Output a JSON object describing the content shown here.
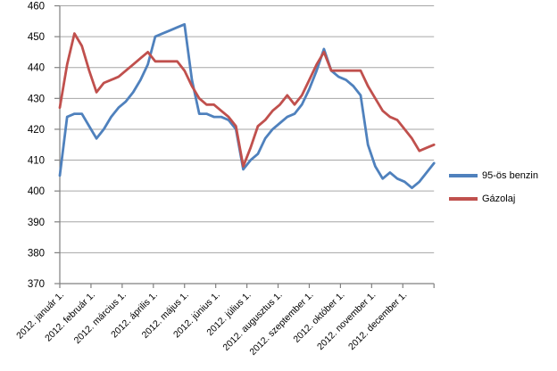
{
  "chart_data": {
    "type": "line",
    "title": "",
    "xlabel": "",
    "ylabel": "",
    "categories": [
      "2012. január 1.",
      "2012. február 1.",
      "2012. március 1.",
      "2012. április 1.",
      "2012. május 1.",
      "2012. június 1.",
      "2012. július 1.",
      "2012. augusztus 1.",
      "2012. szeptember 1.",
      "2012. október 1.",
      "2012. november 1.",
      "2012. december 1."
    ],
    "x_points_per_series": 52,
    "series": [
      {
        "name": "95-ös benzin",
        "color": "#4F81BD",
        "values": [
          405,
          424,
          425,
          425,
          421,
          417,
          420,
          424,
          427,
          429,
          432,
          436,
          441,
          450,
          451,
          452,
          453,
          454,
          436,
          425,
          425,
          424,
          424,
          423,
          420,
          407,
          410,
          412,
          417,
          420,
          422,
          424,
          425,
          428,
          433,
          439,
          446,
          439,
          437,
          436,
          434,
          431,
          415,
          408,
          404,
          406,
          404,
          403,
          401,
          403,
          406,
          409
        ]
      },
      {
        "name": "Gázolaj",
        "color": "#C0504D",
        "values": [
          427,
          441,
          451,
          447,
          439,
          432,
          435,
          436,
          437,
          439,
          441,
          443,
          445,
          442,
          442,
          442,
          442,
          439,
          434,
          430,
          428,
          428,
          426,
          424,
          421,
          408,
          414,
          421,
          423,
          426,
          428,
          431,
          428,
          431,
          436,
          441,
          445,
          439,
          439,
          439,
          439,
          439,
          434,
          430,
          426,
          424,
          423,
          420,
          417,
          413,
          414,
          415
        ]
      }
    ],
    "ylim": [
      370,
      460
    ],
    "yticks": [
      370,
      380,
      390,
      400,
      410,
      420,
      430,
      440,
      450,
      460
    ],
    "grid": true,
    "legend_position": "right"
  },
  "legend": {
    "items": [
      {
        "label": "95-ös benzin",
        "color": "#4F81BD"
      },
      {
        "label": "Gázolaj",
        "color": "#C0504D"
      }
    ]
  },
  "colors": {
    "grid": "#A6A6A6",
    "axis": "#808080",
    "text": "#000000",
    "background": "#FFFFFF"
  }
}
